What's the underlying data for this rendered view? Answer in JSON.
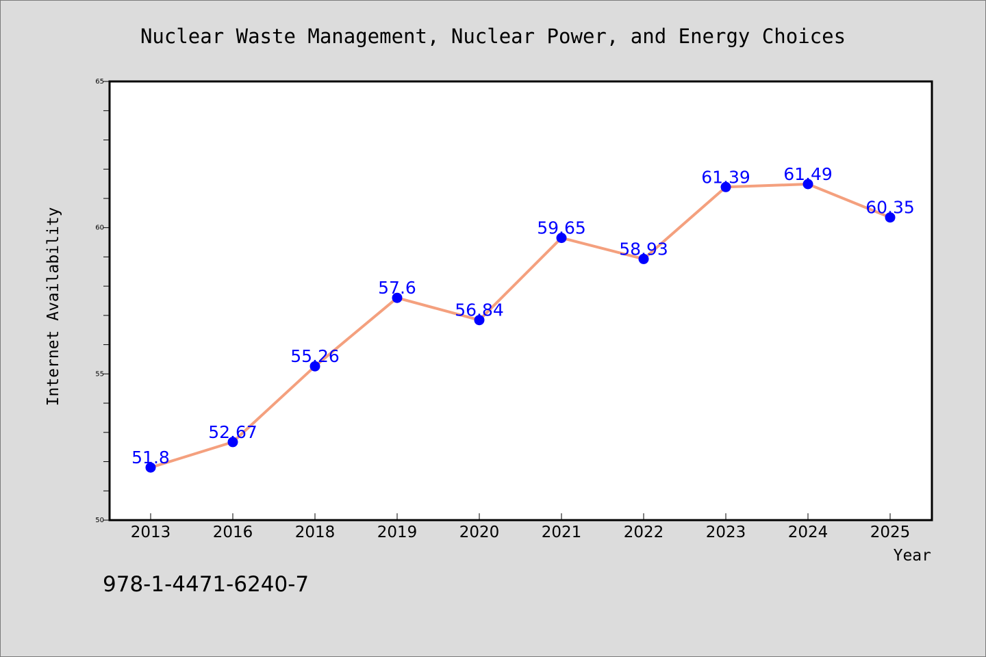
{
  "chart_data": {
    "type": "line",
    "title": "Nuclear Waste Management, Nuclear Power, and Energy Choices",
    "xlabel": "Year",
    "ylabel": "Internet Availability",
    "categories": [
      "2013",
      "2016",
      "2018",
      "2019",
      "2020",
      "2021",
      "2022",
      "2023",
      "2024",
      "2025"
    ],
    "values": [
      51.8,
      52.67,
      55.26,
      57.6,
      56.84,
      59.65,
      58.93,
      61.39,
      61.49,
      60.35
    ],
    "data_labels": [
      "51.8",
      "52.67",
      "55.26",
      "57.6",
      "56.84",
      "59.65",
      "58.93",
      "61.39",
      "61.49",
      "60.35"
    ],
    "ylim": [
      50,
      65
    ],
    "yticks": [
      "50",
      "55",
      "60",
      "65"
    ],
    "grid": false,
    "colors": {
      "line": "#f4a07e",
      "marker": "#0000ff",
      "data_label": "#0000ff",
      "background": "#dcdcdc",
      "plot_background": "#ffffff"
    }
  },
  "caption": "978-1-4471-6240-7"
}
